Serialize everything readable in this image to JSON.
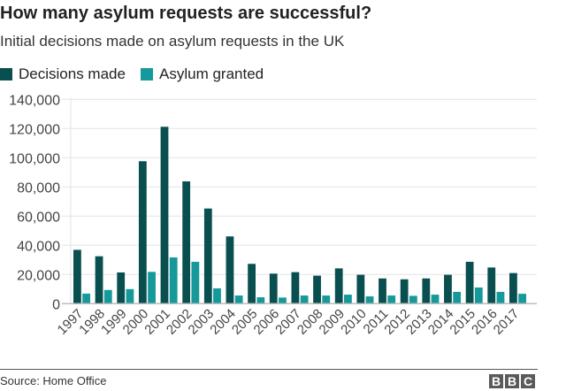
{
  "header": {
    "title": "How many asylum requests are successful?",
    "subtitle": "Initial decisions made on asylum requests in the UK"
  },
  "footer": {
    "source": "Source: Home Office",
    "logo_letters": [
      "B",
      "B",
      "C"
    ]
  },
  "colors": {
    "decisions": "#0a4f50",
    "granted": "#16999a",
    "grid": "#e3e3e3",
    "axis": "#bdbdbd",
    "tick_text": "#444444"
  },
  "chart_data": {
    "type": "bar",
    "title": "How many asylum requests are successful?",
    "subtitle": "Initial decisions made on asylum requests in the UK",
    "xlabel": "",
    "ylabel": "",
    "ylim": [
      0,
      140000
    ],
    "yticks": [
      0,
      20000,
      40000,
      60000,
      80000,
      100000,
      120000,
      140000
    ],
    "ytick_labels": [
      "0",
      "20,000",
      "40,000",
      "60,000",
      "80,000",
      "100,000",
      "120,000",
      "140,000"
    ],
    "grid": true,
    "legend_position": "top-left",
    "categories": [
      "1997",
      "1998",
      "1999",
      "2000",
      "2001",
      "2002",
      "2003",
      "2004",
      "2005",
      "2006",
      "2007",
      "2008",
      "2009",
      "2010",
      "2011",
      "2012",
      "2013",
      "2014",
      "2015",
      "2016",
      "2017"
    ],
    "series": [
      {
        "name": "Decisions made",
        "values": [
          36900,
          32500,
          21400,
          97600,
          121200,
          83800,
          65200,
          46100,
          27300,
          20600,
          21600,
          19200,
          24200,
          19800,
          17300,
          16700,
          17300,
          19800,
          28700,
          24800,
          21000
        ]
      },
      {
        "name": "Asylum granted",
        "values": [
          6900,
          9400,
          10000,
          21800,
          31700,
          28700,
          10500,
          5600,
          4400,
          4200,
          5600,
          5600,
          6200,
          5000,
          5600,
          5400,
          6200,
          8100,
          11100,
          8100,
          6800
        ]
      }
    ],
    "source": "Source: Home Office"
  }
}
